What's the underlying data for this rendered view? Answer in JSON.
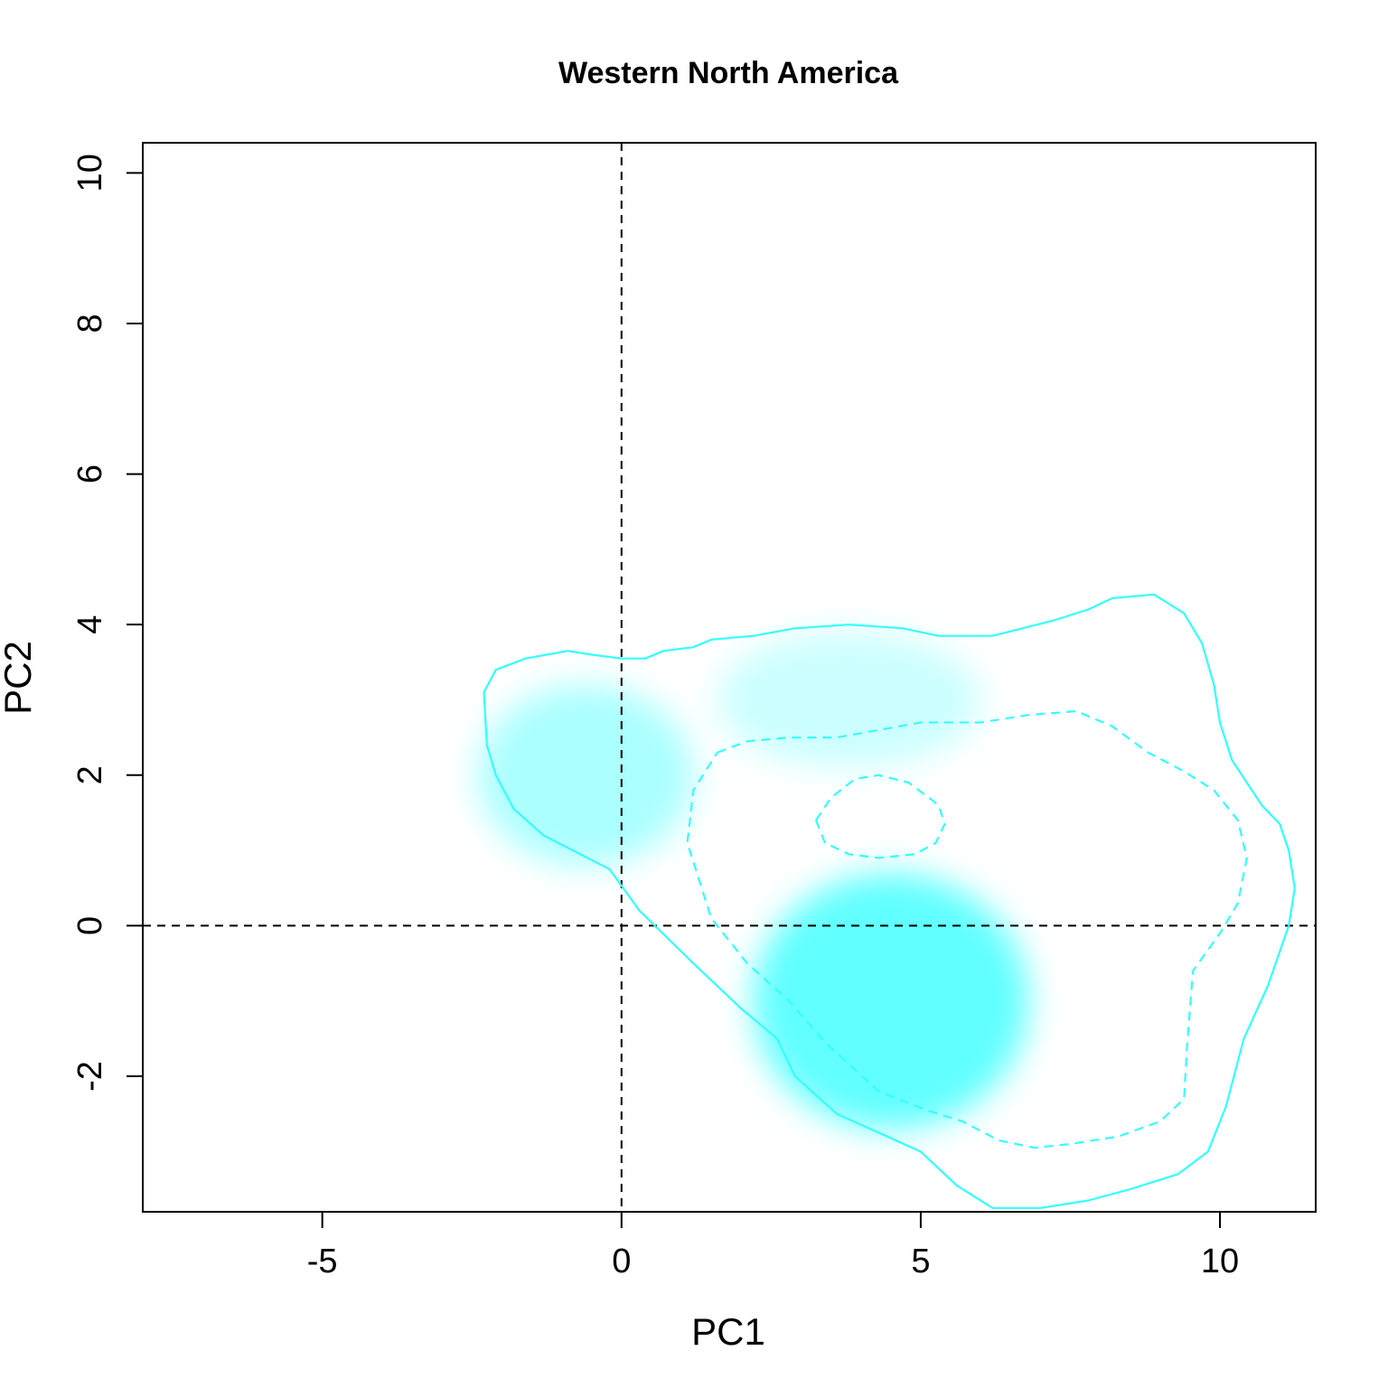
{
  "chart_data": {
    "type": "contour",
    "title": "Western North America",
    "xlabel": "PC1",
    "ylabel": "PC2",
    "xlim": [
      -8,
      11.6
    ],
    "ylim": [
      -3.8,
      10.4
    ],
    "x_ticks": [
      -5,
      0,
      5,
      10
    ],
    "y_ticks": [
      -2,
      0,
      2,
      4,
      6,
      8,
      10
    ],
    "x_tick_labels": [
      "-5",
      "0",
      "5",
      "10"
    ],
    "y_tick_labels": [
      "-2",
      "0",
      "2",
      "4",
      "6",
      "8",
      "10"
    ],
    "reference_lines": {
      "x": 0,
      "y": 0,
      "style": "dashed",
      "color": "#000000"
    },
    "contour_color": "#33ffff",
    "density_color": "#00ffff",
    "grid": false,
    "density_blobs": [
      {
        "cx": 4.5,
        "cy": -1.0,
        "rx": 2.3,
        "ry": 1.7,
        "peak": 0.62
      },
      {
        "cx": -0.6,
        "cy": 2.0,
        "rx": 1.8,
        "ry": 1.2,
        "peak": 0.33
      },
      {
        "cx": 3.8,
        "cy": 3.0,
        "rx": 2.2,
        "ry": 0.9,
        "peak": 0.2
      }
    ],
    "contours": [
      {
        "level": "outer",
        "line_style": "solid",
        "points": [
          [
            -2.3,
            3.1
          ],
          [
            -2.1,
            3.4
          ],
          [
            -1.6,
            3.55
          ],
          [
            -0.9,
            3.65
          ],
          [
            -0.5,
            3.6
          ],
          [
            0.0,
            3.55
          ],
          [
            0.4,
            3.55
          ],
          [
            0.7,
            3.65
          ],
          [
            1.2,
            3.7
          ],
          [
            1.5,
            3.8
          ],
          [
            2.2,
            3.85
          ],
          [
            2.9,
            3.95
          ],
          [
            3.8,
            4.0
          ],
          [
            4.7,
            3.95
          ],
          [
            5.3,
            3.85
          ],
          [
            6.2,
            3.85
          ],
          [
            6.7,
            3.95
          ],
          [
            7.2,
            4.05
          ],
          [
            7.8,
            4.2
          ],
          [
            8.2,
            4.35
          ],
          [
            8.9,
            4.4
          ],
          [
            9.4,
            4.15
          ],
          [
            9.7,
            3.75
          ],
          [
            9.9,
            3.2
          ],
          [
            10.0,
            2.7
          ],
          [
            10.2,
            2.2
          ],
          [
            10.7,
            1.6
          ],
          [
            11.0,
            1.35
          ],
          [
            11.15,
            1.0
          ],
          [
            11.25,
            0.5
          ],
          [
            11.15,
            0.0
          ],
          [
            10.8,
            -0.8
          ],
          [
            10.4,
            -1.5
          ],
          [
            10.1,
            -2.4
          ],
          [
            9.8,
            -3.0
          ],
          [
            9.3,
            -3.3
          ],
          [
            8.5,
            -3.5
          ],
          [
            7.8,
            -3.65
          ],
          [
            7.0,
            -3.75
          ],
          [
            6.2,
            -3.75
          ],
          [
            5.6,
            -3.45
          ],
          [
            5.0,
            -3.0
          ],
          [
            4.3,
            -2.75
          ],
          [
            3.6,
            -2.5
          ],
          [
            2.9,
            -2.0
          ],
          [
            2.6,
            -1.5
          ],
          [
            2.0,
            -1.1
          ],
          [
            1.2,
            -0.5
          ],
          [
            0.3,
            0.2
          ],
          [
            -0.2,
            0.75
          ],
          [
            -1.3,
            1.2
          ],
          [
            -1.8,
            1.55
          ],
          [
            -2.1,
            2.0
          ],
          [
            -2.25,
            2.4
          ],
          [
            -2.3,
            3.1
          ]
        ]
      },
      {
        "level": "middle",
        "line_style": "dashed",
        "points": [
          [
            1.6,
            2.3
          ],
          [
            2.1,
            2.45
          ],
          [
            2.8,
            2.5
          ],
          [
            3.6,
            2.5
          ],
          [
            4.3,
            2.6
          ],
          [
            5.0,
            2.7
          ],
          [
            6.0,
            2.7
          ],
          [
            6.8,
            2.8
          ],
          [
            7.6,
            2.85
          ],
          [
            8.2,
            2.65
          ],
          [
            8.8,
            2.3
          ],
          [
            9.4,
            2.05
          ],
          [
            9.9,
            1.8
          ],
          [
            10.3,
            1.4
          ],
          [
            10.45,
            0.9
          ],
          [
            10.3,
            0.3
          ],
          [
            10.0,
            -0.1
          ],
          [
            9.55,
            -0.6
          ],
          [
            9.45,
            -1.6
          ],
          [
            9.4,
            -2.3
          ],
          [
            9.0,
            -2.6
          ],
          [
            8.3,
            -2.8
          ],
          [
            7.5,
            -2.9
          ],
          [
            6.9,
            -2.95
          ],
          [
            6.3,
            -2.85
          ],
          [
            5.7,
            -2.6
          ],
          [
            5.1,
            -2.45
          ],
          [
            4.3,
            -2.2
          ],
          [
            3.4,
            -1.55
          ],
          [
            2.8,
            -1.0
          ],
          [
            2.1,
            -0.5
          ],
          [
            1.5,
            0.1
          ],
          [
            1.1,
            1.1
          ],
          [
            1.2,
            1.8
          ],
          [
            1.6,
            2.3
          ]
        ]
      },
      {
        "level": "inner",
        "line_style": "dashed",
        "points": [
          [
            3.25,
            1.4
          ],
          [
            3.5,
            1.7
          ],
          [
            3.9,
            1.95
          ],
          [
            4.3,
            2.0
          ],
          [
            4.8,
            1.9
          ],
          [
            5.3,
            1.6
          ],
          [
            5.4,
            1.35
          ],
          [
            5.25,
            1.1
          ],
          [
            4.9,
            0.95
          ],
          [
            4.3,
            0.9
          ],
          [
            3.8,
            0.95
          ],
          [
            3.4,
            1.1
          ],
          [
            3.25,
            1.4
          ]
        ]
      }
    ]
  }
}
